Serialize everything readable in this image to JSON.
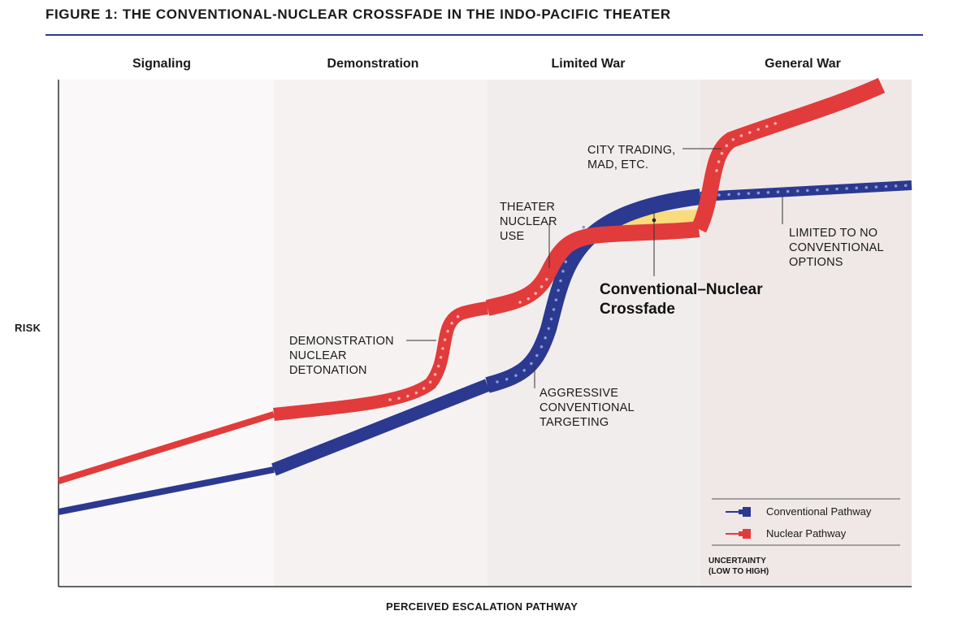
{
  "figure": {
    "title": "FIGURE 1: THE CONVENTIONAL-NUCLEAR CROSSFADE IN THE INDO-PACIFIC THEATER"
  },
  "phases": [
    "Signaling",
    "Demonstration",
    "Limited War",
    "General War"
  ],
  "axes": {
    "y_label": "RISK",
    "x_label": "PERCEIVED ESCALATION PATHWAY"
  },
  "annotations": {
    "demonstration": [
      "DEMONSTRATION",
      "NUCLEAR",
      "DETONATION"
    ],
    "theater": [
      "THEATER",
      "NUCLEAR",
      "USE"
    ],
    "city": [
      "CITY TRADING,",
      "MAD, ETC."
    ],
    "limited": [
      "LIMITED TO NO",
      "CONVENTIONAL",
      "OPTIONS"
    ],
    "aggressive": [
      "AGGRESSIVE",
      "CONVENTIONAL",
      "TARGETING"
    ],
    "crossfade": [
      "Conventional–Nuclear",
      "Crossfade"
    ]
  },
  "legend": {
    "conventional": "Conventional Pathway",
    "nuclear": "Nuclear Pathway",
    "uncertainty": [
      "UNCERTAINTY",
      "(LOW TO HIGH)"
    ]
  },
  "colors": {
    "conventional": "#2b3990",
    "nuclear": "#e23b3b",
    "crossfade": "#f9dc7c",
    "band_signaling": "#faf8f8",
    "band_demonstration": "#f6f2f2",
    "band_limited": "#f2eded",
    "band_general": "#efe8e7"
  }
}
